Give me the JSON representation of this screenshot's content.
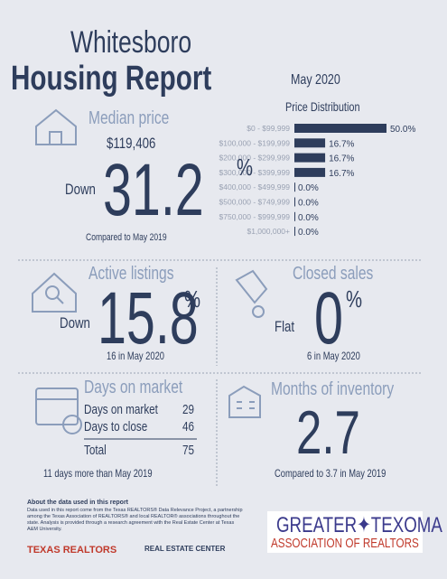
{
  "header": {
    "city": "Whitesboro",
    "title": "Housing Report",
    "period": "May 2020"
  },
  "price_distribution": {
    "title": "Price Distribution",
    "categories": [
      "$0 - $99,999",
      "$100,000 - $199,999",
      "$200,000 - $299,999",
      "$300,000 - $399,999",
      "$400,000 - $499,999",
      "$500,000 - $749,999",
      "$750,000 - $999,999",
      "$1,000,000+"
    ],
    "values": [
      50,
      16.7,
      16.7,
      16.7,
      0,
      0,
      0,
      0
    ],
    "value_labels": [
      "50.0%",
      "16.7%",
      "16.7%",
      "16.7%",
      "0.0%",
      "0.0%",
      "0.0%",
      "0.0%"
    ],
    "color": "#2e3d5c"
  },
  "median_price": {
    "label": "Median price",
    "value": "$119,406",
    "direction": "Down",
    "change": 31.2,
    "unit": "%",
    "comparison": "Compared to May 2019"
  },
  "active_listings": {
    "label": "Active listings",
    "direction": "Down",
    "change": 15.8,
    "unit": "%",
    "note": "16 in May 2020"
  },
  "closed_sales": {
    "label": "Closed sales",
    "direction": "Flat",
    "change": 0,
    "unit": "%",
    "note": "6 in May 2020"
  },
  "days_on_market": {
    "label": "Days on market",
    "rows": [
      [
        "Days on market",
        29
      ],
      [
        "Days to close",
        46
      ],
      [
        "Total",
        75
      ]
    ],
    "note": "11 days more than May 2019"
  },
  "months_of_inventory": {
    "label": "Months of inventory",
    "value": 2.7,
    "note": "Compared to 3.7 in May 2019"
  },
  "footer": {
    "about_title": "About the data used in this report",
    "about_text": "Data used in this report come from the Texas REALTORS® Data Relevance Project, a partnership among the Texas Association of REALTORS® and local REALTOR® associations throughout the state. Analysis is provided through a research agreement with the Real Estate Center at Texas A&M University.",
    "logos": [
      "TEXAS REALTORS",
      "REAL ESTATE CENTER"
    ],
    "association": {
      "name": "GREATER✦TEXOMA",
      "subtitle": "ASSOCIATION OF REALTORS"
    }
  }
}
